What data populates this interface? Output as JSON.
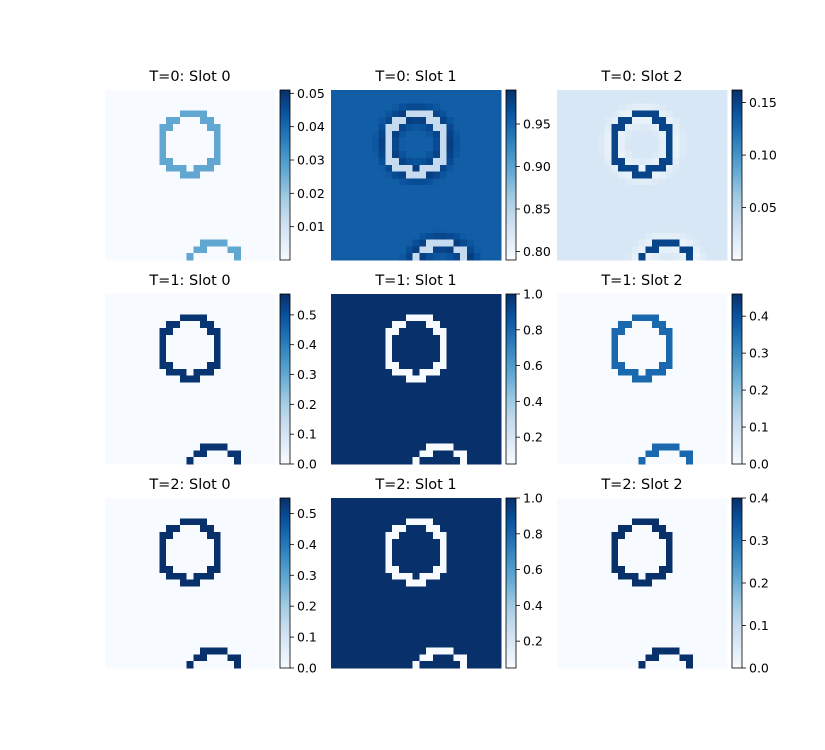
{
  "chart_data": [
    {
      "type": "heatmap",
      "title": "T=0: Slot 0",
      "colormap": "Blues",
      "background_value": 0.0,
      "ring_value": 0.027,
      "colorbar": {
        "vmin": 0.0,
        "vmax": 0.051,
        "ticks": [
          0.01,
          0.02,
          0.03,
          0.04,
          0.05
        ],
        "tick_labels": [
          "0.01",
          "0.02",
          "0.03",
          "0.04",
          "0.05"
        ]
      }
    },
    {
      "type": "heatmap",
      "title": "T=0: Slot 1",
      "colormap": "Blues",
      "background_value": 0.955,
      "ring_value": 0.84,
      "halo_value": 0.99,
      "colorbar": {
        "vmin": 0.79,
        "vmax": 0.99,
        "ticks": [
          0.8,
          0.85,
          0.9,
          0.95
        ],
        "tick_labels": [
          "0.80",
          "0.85",
          "0.90",
          "0.95"
        ]
      }
    },
    {
      "type": "heatmap",
      "title": "T=0: Slot 2",
      "colormap": "Blues",
      "background_value": 0.025,
      "ring_value": 0.15,
      "halo_value": 0.005,
      "colorbar": {
        "vmin": 0.0,
        "vmax": 0.162,
        "ticks": [
          0.05,
          0.1,
          0.15
        ],
        "tick_labels": [
          "0.05",
          "0.10",
          "0.15"
        ]
      }
    },
    {
      "type": "heatmap",
      "title": "T=1: Slot 0",
      "colormap": "Blues",
      "background_value": 0.0,
      "ring_value": 0.56,
      "colorbar": {
        "vmin": 0.0,
        "vmax": 0.57,
        "ticks": [
          0.0,
          0.1,
          0.2,
          0.3,
          0.4,
          0.5
        ],
        "tick_labels": [
          "0.0",
          "0.1",
          "0.2",
          "0.3",
          "0.4",
          "0.5"
        ]
      }
    },
    {
      "type": "heatmap",
      "title": "T=1: Slot 1",
      "colormap": "Blues",
      "background_value": 1.0,
      "ring_value": 0.05,
      "colorbar": {
        "vmin": 0.05,
        "vmax": 1.0,
        "ticks": [
          0.2,
          0.4,
          0.6,
          0.8,
          1.0
        ],
        "tick_labels": [
          "0.2",
          "0.4",
          "0.6",
          "0.8",
          "1.0"
        ]
      }
    },
    {
      "type": "heatmap",
      "title": "T=1: Slot 2",
      "colormap": "Blues",
      "background_value": 0.0,
      "ring_value": 0.36,
      "colorbar": {
        "vmin": 0.0,
        "vmax": 0.46,
        "ticks": [
          0.0,
          0.1,
          0.2,
          0.3,
          0.4
        ],
        "tick_labels": [
          "0.0",
          "0.1",
          "0.2",
          "0.3",
          "0.4"
        ]
      }
    },
    {
      "type": "heatmap",
      "title": "T=2: Slot 0",
      "colormap": "Blues",
      "background_value": 0.0,
      "ring_value": 0.55,
      "colorbar": {
        "vmin": 0.0,
        "vmax": 0.55,
        "ticks": [
          0.0,
          0.1,
          0.2,
          0.3,
          0.4,
          0.5
        ],
        "tick_labels": [
          "0.0",
          "0.1",
          "0.2",
          "0.3",
          "0.4",
          "0.5"
        ]
      }
    },
    {
      "type": "heatmap",
      "title": "T=2: Slot 1",
      "colormap": "Blues",
      "background_value": 1.0,
      "ring_value": 0.05,
      "colorbar": {
        "vmin": 0.05,
        "vmax": 1.0,
        "ticks": [
          0.2,
          0.4,
          0.6,
          0.8,
          1.0
        ],
        "tick_labels": [
          "0.2",
          "0.4",
          "0.6",
          "0.8",
          "1.0"
        ]
      }
    },
    {
      "type": "heatmap",
      "title": "T=2: Slot 2",
      "colormap": "Blues",
      "background_value": 0.0,
      "ring_value": 0.4,
      "colorbar": {
        "vmin": 0.0,
        "vmax": 0.4,
        "ticks": [
          0.0,
          0.1,
          0.2,
          0.3,
          0.4
        ],
        "tick_labels": [
          "0.0",
          "0.1",
          "0.2",
          "0.3",
          "0.4"
        ]
      }
    }
  ]
}
